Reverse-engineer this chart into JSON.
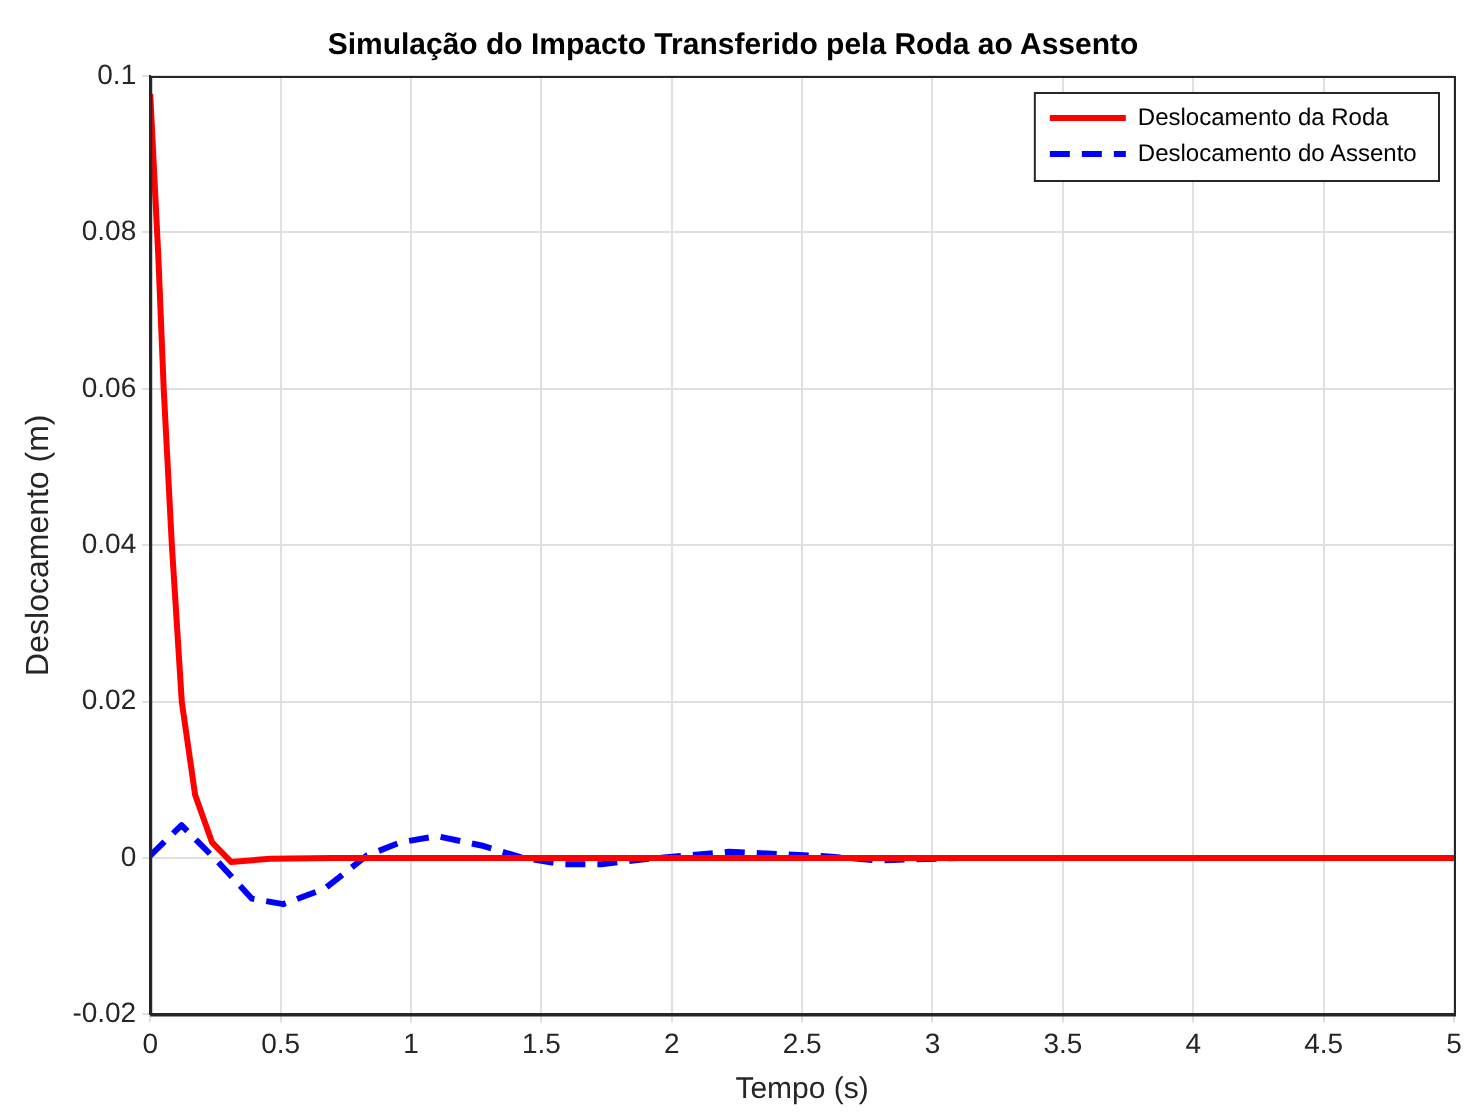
{
  "chart_data": {
    "type": "line",
    "title": "Simulação do Impacto Transferido pela Roda ao Assento",
    "xlabel": "Tempo (s)",
    "ylabel": "Deslocamento (m)",
    "xlim": [
      0,
      5
    ],
    "xticks": [
      0,
      0.5,
      1,
      1.5,
      2,
      2.5,
      3,
      3.5,
      4,
      4.5,
      5
    ],
    "ylim": [
      -0.02,
      0.1
    ],
    "yticks": [
      -0.02,
      0,
      0.02,
      0.04,
      0.06,
      0.08,
      0.1
    ],
    "grid": true,
    "legend": "top right",
    "marker": "none",
    "series": [
      {
        "name": "Deslocamento da Roda",
        "color": "#ff0000",
        "line_style": "solid",
        "x": [
          0,
          0.031,
          0.052,
          0.083,
          0.121,
          0.172,
          0.237,
          0.31,
          0.46,
          0.7,
          1,
          2,
          3,
          4,
          5
        ],
        "values": [
          0.0977,
          0.077,
          0.0598,
          0.04,
          0.02,
          0.0081,
          0.002,
          -0.0005,
          -0.0001,
          0,
          0,
          0,
          0,
          0,
          0
        ]
      },
      {
        "name": "Deslocamento do Assento",
        "color": "#0000ff",
        "line_style": "dashed",
        "x": [
          0,
          0.12,
          0.26,
          0.39,
          0.51,
          0.67,
          0.83,
          0.96,
          1.1,
          1.27,
          1.42,
          1.58,
          1.73,
          1.91,
          2.22,
          2.6,
          2.79,
          3.1,
          4,
          5
        ],
        "values": [
          0.0003,
          0.0042,
          -0.0005,
          -0.0052,
          -0.0059,
          -0.0039,
          0.0003,
          0.002,
          0.0028,
          0.0016,
          0.0001,
          -0.0008,
          -0.0008,
          -0.0001,
          0.0008,
          0.0002,
          -0.0003,
          0,
          0,
          0
        ]
      }
    ]
  }
}
